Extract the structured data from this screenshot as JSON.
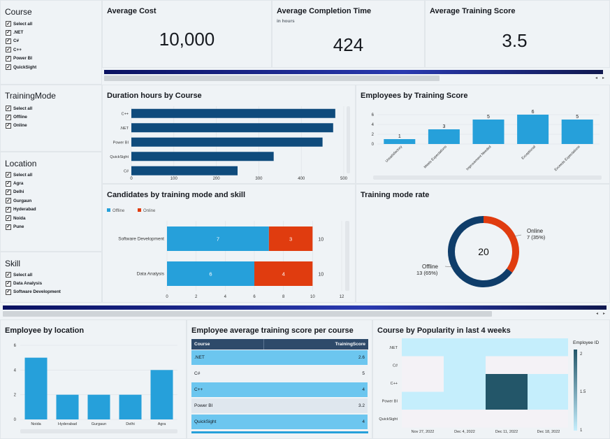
{
  "filters": {
    "course": {
      "title": "Course",
      "items": [
        "Select all",
        ".NET",
        "C#",
        "C++",
        "Power BI",
        "QuickSight"
      ]
    },
    "mode": {
      "title": "TrainingMode",
      "items": [
        "Select all",
        "Offline",
        "Online"
      ]
    },
    "location": {
      "title": "Location",
      "items": [
        "Select all",
        "Agra",
        "Delhi",
        "Gurgaun",
        "Hyderabad",
        "Noida",
        "Pune"
      ]
    },
    "skill": {
      "title": "Skill",
      "items": [
        "Select all",
        "Data Analysis",
        "Software Development"
      ]
    }
  },
  "kpis": {
    "cost": {
      "title": "Average Cost",
      "value": "10,000"
    },
    "time": {
      "title": "Average Completion Time",
      "subtitle": "in hours",
      "value": "424"
    },
    "score": {
      "title": "Average Training Score",
      "value": "3.5"
    }
  },
  "colors": {
    "bar_dark": "#0f4b7c",
    "bar_light": "#26a0da",
    "online": "#e03c0f",
    "offline": "#26a0da",
    "accent": "#0f3d6a"
  },
  "chart_data": [
    {
      "id": "duration",
      "type": "bar",
      "title": "Duration hours by Course",
      "orientation": "horizontal",
      "categories": [
        "C++",
        ".NET",
        "Power BI",
        "QuickSight",
        "C#"
      ],
      "values": [
        480,
        475,
        450,
        335,
        250
      ],
      "xticks": [
        "0",
        "100",
        "200",
        "300",
        "400",
        "500"
      ],
      "xlim": [
        0,
        500
      ]
    },
    {
      "id": "score",
      "type": "bar",
      "title": "Employees by Training Score",
      "categories": [
        "Unsatisfactory",
        "Meets Expectations",
        "Improvement Needed",
        "Exceptional",
        "Exceeds Expectations"
      ],
      "values": [
        1,
        3,
        5,
        6,
        5
      ],
      "yticks": [
        "0",
        "2",
        "4",
        "6"
      ],
      "ylim": [
        0,
        7
      ]
    },
    {
      "id": "candidates",
      "type": "bar",
      "title": "Candidates by training mode and skill",
      "orientation": "horizontal",
      "stacked": true,
      "categories": [
        "Software Development",
        "Data Analysis"
      ],
      "series": [
        {
          "name": "Offline",
          "values": [
            7,
            6
          ]
        },
        {
          "name": "Online",
          "values": [
            3,
            4
          ]
        }
      ],
      "totals": [
        "10",
        "10"
      ],
      "xticks": [
        "0",
        "2",
        "4",
        "6",
        "8",
        "10",
        "12"
      ],
      "xlim": [
        0,
        12
      ]
    },
    {
      "id": "moderate",
      "type": "pie",
      "donut": true,
      "title": "Training mode rate",
      "center_label": "20",
      "slices": [
        {
          "label": "Online",
          "value": 7,
          "text": "7 (35%)"
        },
        {
          "label": "Offline",
          "value": 13,
          "text": "13 (65%)"
        }
      ]
    },
    {
      "id": "location",
      "type": "bar",
      "title": "Employee by location",
      "categories": [
        "Noida",
        "Hyderabad",
        "Gurgaun",
        "Delhi",
        "Agra"
      ],
      "values": [
        5,
        2,
        2,
        2,
        4
      ],
      "yticks": [
        "0",
        "2",
        "4",
        "6"
      ],
      "ylim": [
        0,
        6
      ]
    },
    {
      "id": "avgscore",
      "type": "table",
      "title": "Employee average training score per course",
      "columns": [
        "Course",
        "TrainingScore"
      ],
      "rows": [
        [
          ".NET",
          "2.6"
        ],
        [
          "C#",
          "5"
        ],
        [
          "C++",
          "4"
        ],
        [
          "Power BI",
          "3.2"
        ],
        [
          "QuickSight",
          "4"
        ]
      ]
    },
    {
      "id": "popularity",
      "type": "heatmap",
      "title": "Course by Popularity in last 4 weeks",
      "y": [
        ".NET",
        "C#",
        "C++",
        "Power BI",
        "QuickSight"
      ],
      "x": [
        "Nov 27, 2022",
        "Dec 4, 2022",
        "Dec 11, 2022",
        "Dec 18, 2022"
      ],
      "values": [
        [
          1,
          1,
          1,
          1
        ],
        [
          null,
          1,
          null,
          null
        ],
        [
          null,
          1,
          2,
          1
        ],
        [
          1,
          1,
          2,
          1
        ],
        [
          null,
          null,
          null,
          null
        ]
      ],
      "legend_title": "Employee ID",
      "legend_ticks": [
        "2",
        "1.5",
        "1"
      ]
    }
  ]
}
